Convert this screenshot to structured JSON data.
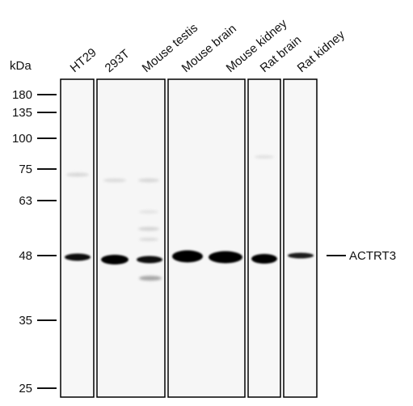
{
  "mw_unit": "kDa",
  "markers": [
    "180",
    "135",
    "100",
    "75",
    "63",
    "48",
    "35",
    "25"
  ],
  "lanes": [
    "HT29",
    "293T",
    "Mouse testis",
    "Mouse brain",
    "Mouse kidney",
    "Rat brain",
    "Rat kidney"
  ],
  "target_label": "ACTRT3"
}
